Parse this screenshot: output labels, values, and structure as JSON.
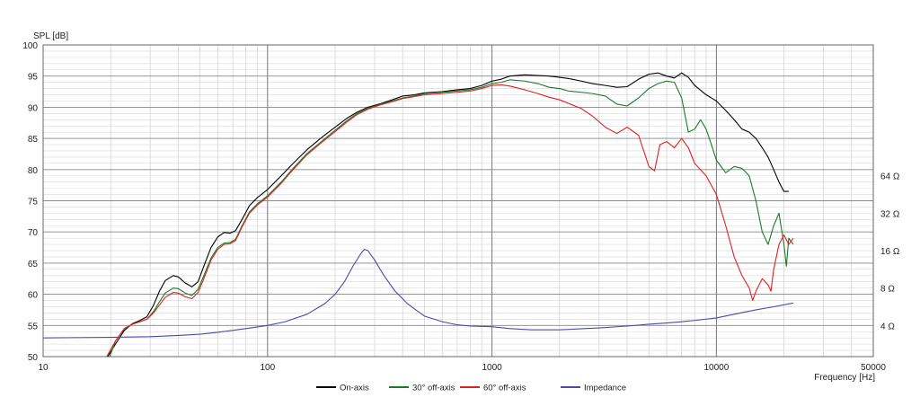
{
  "chart_data": {
    "type": "line",
    "ylabel": "SPL [dB]",
    "xlabel": "Frequency [Hz]",
    "x_scale": "log",
    "xlim": [
      10,
      50000
    ],
    "ylim": [
      50,
      100
    ],
    "grid": true,
    "legend_position": "bottom",
    "x_ticks": [
      {
        "value": 10,
        "label": "10"
      },
      {
        "value": 100,
        "label": "100"
      },
      {
        "value": 1000,
        "label": "1000"
      },
      {
        "value": 10000,
        "label": "10000"
      },
      {
        "value": 50000,
        "label": "50000"
      }
    ],
    "y_ticks": [
      {
        "value": 100,
        "label": "100"
      },
      {
        "value": 95,
        "label": "95"
      },
      {
        "value": 90,
        "label": "90"
      },
      {
        "value": 85,
        "label": "85"
      },
      {
        "value": 80,
        "label": "80"
      },
      {
        "value": 75,
        "label": "75"
      },
      {
        "value": 70,
        "label": "70"
      },
      {
        "value": 65,
        "label": "65"
      },
      {
        "value": 60,
        "label": "60"
      },
      {
        "value": 55,
        "label": "55"
      },
      {
        "value": 50,
        "label": "50"
      }
    ],
    "right_axis_ticks": [
      {
        "value": 79,
        "label": "64 Ω"
      },
      {
        "value": 73,
        "label": "32 Ω"
      },
      {
        "value": 67,
        "label": "16 Ω"
      },
      {
        "value": 61,
        "label": "8 Ω"
      },
      {
        "value": 55,
        "label": "4 Ω"
      }
    ],
    "series": [
      {
        "name": "On-axis",
        "color": "#000000",
        "points": [
          [
            19.4,
            50
          ],
          [
            21,
            52
          ],
          [
            23,
            54.2
          ],
          [
            25,
            55.3
          ],
          [
            27,
            55.8
          ],
          [
            29,
            56.4
          ],
          [
            31,
            58.2
          ],
          [
            33,
            60.5
          ],
          [
            35,
            62.2
          ],
          [
            38,
            63
          ],
          [
            40,
            62.8
          ],
          [
            43,
            61.8
          ],
          [
            46,
            61.2
          ],
          [
            49,
            62
          ],
          [
            52,
            64.5
          ],
          [
            56,
            67.5
          ],
          [
            60,
            69.2
          ],
          [
            64,
            69.9
          ],
          [
            68,
            69.8
          ],
          [
            72,
            70.2
          ],
          [
            77,
            72
          ],
          [
            83,
            74.2
          ],
          [
            90,
            75.5
          ],
          [
            100,
            76.8
          ],
          [
            115,
            79
          ],
          [
            130,
            81
          ],
          [
            150,
            83.2
          ],
          [
            175,
            85.2
          ],
          [
            200,
            86.8
          ],
          [
            225,
            88.2
          ],
          [
            250,
            89.2
          ],
          [
            280,
            90
          ],
          [
            320,
            90.6
          ],
          [
            360,
            91.2
          ],
          [
            400,
            91.8
          ],
          [
            450,
            92
          ],
          [
            500,
            92.3
          ],
          [
            600,
            92.5
          ],
          [
            700,
            92.8
          ],
          [
            800,
            93
          ],
          [
            900,
            93.5
          ],
          [
            1000,
            94.2
          ],
          [
            1100,
            94.5
          ],
          [
            1200,
            95
          ],
          [
            1400,
            95.2
          ],
          [
            1600,
            95.1
          ],
          [
            1800,
            95
          ],
          [
            2000,
            94.8
          ],
          [
            2200,
            94.6
          ],
          [
            2500,
            94.2
          ],
          [
            2800,
            93.8
          ],
          [
            3200,
            93.5
          ],
          [
            3600,
            93.2
          ],
          [
            4000,
            93.3
          ],
          [
            4500,
            94.5
          ],
          [
            5000,
            95.3
          ],
          [
            5500,
            95.5
          ],
          [
            6000,
            95
          ],
          [
            6500,
            94.7
          ],
          [
            7000,
            95.5
          ],
          [
            7500,
            94.8
          ],
          [
            8000,
            93.5
          ],
          [
            9000,
            92
          ],
          [
            10000,
            91
          ],
          [
            11000,
            89.5
          ],
          [
            12000,
            88
          ],
          [
            13000,
            86.5
          ],
          [
            14000,
            86
          ],
          [
            15000,
            85
          ],
          [
            16000,
            83.5
          ],
          [
            17000,
            82
          ],
          [
            18000,
            80
          ],
          [
            19000,
            78
          ],
          [
            20000,
            76.5
          ],
          [
            21000,
            76.5
          ]
        ]
      },
      {
        "name": "30° off-axis",
        "color": "#1a7a2a",
        "points": [
          [
            19.8,
            50
          ],
          [
            21,
            52.5
          ],
          [
            23,
            54.5
          ],
          [
            25,
            55.2
          ],
          [
            27,
            55.6
          ],
          [
            29,
            56
          ],
          [
            31,
            57.2
          ],
          [
            33,
            58.8
          ],
          [
            35,
            60.2
          ],
          [
            38,
            61
          ],
          [
            40,
            60.9
          ],
          [
            43,
            60.2
          ],
          [
            46,
            59.8
          ],
          [
            49,
            60.8
          ],
          [
            52,
            63
          ],
          [
            56,
            65.8
          ],
          [
            60,
            67.5
          ],
          [
            64,
            68.2
          ],
          [
            68,
            68.3
          ],
          [
            72,
            68.8
          ],
          [
            77,
            71
          ],
          [
            83,
            73.2
          ],
          [
            90,
            74.5
          ],
          [
            100,
            75.8
          ],
          [
            115,
            78
          ],
          [
            130,
            80.2
          ],
          [
            150,
            82.6
          ],
          [
            175,
            84.6
          ],
          [
            200,
            86.3
          ],
          [
            225,
            87.8
          ],
          [
            250,
            89
          ],
          [
            280,
            89.8
          ],
          [
            320,
            90.5
          ],
          [
            360,
            91
          ],
          [
            400,
            91.5
          ],
          [
            450,
            91.8
          ],
          [
            500,
            92.2
          ],
          [
            600,
            92.4
          ],
          [
            700,
            92.6
          ],
          [
            800,
            92.8
          ],
          [
            900,
            93.2
          ],
          [
            1000,
            93.8
          ],
          [
            1100,
            94
          ],
          [
            1200,
            94.4
          ],
          [
            1400,
            94.2
          ],
          [
            1600,
            93.8
          ],
          [
            1800,
            93.2
          ],
          [
            2000,
            93
          ],
          [
            2200,
            92.6
          ],
          [
            2500,
            92.4
          ],
          [
            2800,
            92.2
          ],
          [
            3200,
            91.8
          ],
          [
            3600,
            90.5
          ],
          [
            4000,
            90.2
          ],
          [
            4500,
            91.5
          ],
          [
            5000,
            93
          ],
          [
            5500,
            93.8
          ],
          [
            6000,
            94.2
          ],
          [
            6500,
            94
          ],
          [
            7000,
            91.5
          ],
          [
            7500,
            86
          ],
          [
            8000,
            86.5
          ],
          [
            8500,
            88
          ],
          [
            9000,
            86.5
          ],
          [
            9500,
            84
          ],
          [
            10000,
            81.5
          ],
          [
            11000,
            79.5
          ],
          [
            12000,
            80.5
          ],
          [
            13000,
            80.2
          ],
          [
            14000,
            79
          ],
          [
            15000,
            75
          ],
          [
            16000,
            70
          ],
          [
            17000,
            68
          ],
          [
            18000,
            71
          ],
          [
            19000,
            73
          ],
          [
            20000,
            68
          ],
          [
            20500,
            64.5
          ],
          [
            21000,
            69
          ],
          [
            22000,
            68
          ]
        ]
      },
      {
        "name": "60° off-axis",
        "color": "#e02020",
        "points": [
          [
            19.2,
            50
          ],
          [
            21,
            52.5
          ],
          [
            23,
            54.5
          ],
          [
            25,
            55.2
          ],
          [
            27,
            55.6
          ],
          [
            29,
            56
          ],
          [
            31,
            57
          ],
          [
            33,
            58.3
          ],
          [
            35,
            59.5
          ],
          [
            38,
            60.3
          ],
          [
            40,
            60.2
          ],
          [
            43,
            59.6
          ],
          [
            46,
            59.3
          ],
          [
            49,
            60.3
          ],
          [
            52,
            62.5
          ],
          [
            56,
            65.5
          ],
          [
            60,
            67.2
          ],
          [
            64,
            68
          ],
          [
            68,
            68.1
          ],
          [
            72,
            68.6
          ],
          [
            77,
            70.8
          ],
          [
            83,
            73
          ],
          [
            90,
            74.3
          ],
          [
            100,
            75.6
          ],
          [
            115,
            77.8
          ],
          [
            130,
            80
          ],
          [
            150,
            82.4
          ],
          [
            175,
            84.4
          ],
          [
            200,
            86.1
          ],
          [
            225,
            87.6
          ],
          [
            250,
            88.8
          ],
          [
            280,
            89.7
          ],
          [
            320,
            90.4
          ],
          [
            360,
            90.9
          ],
          [
            400,
            91.4
          ],
          [
            450,
            91.7
          ],
          [
            500,
            92
          ],
          [
            600,
            92.2
          ],
          [
            700,
            92.4
          ],
          [
            800,
            92.6
          ],
          [
            900,
            93
          ],
          [
            1000,
            93.5
          ],
          [
            1100,
            93.6
          ],
          [
            1200,
            93.4
          ],
          [
            1400,
            92.8
          ],
          [
            1600,
            92.2
          ],
          [
            1800,
            91.6
          ],
          [
            2000,
            91.2
          ],
          [
            2200,
            90.6
          ],
          [
            2500,
            89.8
          ],
          [
            2800,
            88.6
          ],
          [
            3200,
            86.8
          ],
          [
            3600,
            85.8
          ],
          [
            4000,
            86.8
          ],
          [
            4500,
            85.5
          ],
          [
            5000,
            80.5
          ],
          [
            5300,
            79.8
          ],
          [
            5600,
            84
          ],
          [
            6000,
            84.5
          ],
          [
            6500,
            83.5
          ],
          [
            7000,
            85
          ],
          [
            7500,
            83.5
          ],
          [
            8000,
            81
          ],
          [
            9000,
            79
          ],
          [
            10000,
            76
          ],
          [
            11000,
            71
          ],
          [
            12000,
            66
          ],
          [
            13000,
            63
          ],
          [
            14000,
            61
          ],
          [
            14500,
            59
          ],
          [
            15000,
            60.5
          ],
          [
            16000,
            62.5
          ],
          [
            17000,
            61.5
          ],
          [
            17500,
            60.5
          ],
          [
            18000,
            64
          ],
          [
            19000,
            68
          ],
          [
            20000,
            69.5
          ],
          [
            21000,
            68
          ],
          [
            22000,
            69
          ]
        ]
      },
      {
        "name": "Impedance",
        "color": "#4a4aaa",
        "points": [
          [
            10,
            53
          ],
          [
            20,
            53.1
          ],
          [
            30,
            53.2
          ],
          [
            40,
            53.4
          ],
          [
            50,
            53.6
          ],
          [
            60,
            53.9
          ],
          [
            70,
            54.2
          ],
          [
            80,
            54.5
          ],
          [
            100,
            55
          ],
          [
            120,
            55.6
          ],
          [
            150,
            56.8
          ],
          [
            180,
            58.5
          ],
          [
            200,
            60
          ],
          [
            220,
            62
          ],
          [
            240,
            64.5
          ],
          [
            260,
            66.5
          ],
          [
            270,
            67.2
          ],
          [
            280,
            67
          ],
          [
            300,
            65.5
          ],
          [
            330,
            63
          ],
          [
            370,
            60.5
          ],
          [
            420,
            58.5
          ],
          [
            500,
            56.5
          ],
          [
            600,
            55.6
          ],
          [
            700,
            55.1
          ],
          [
            800,
            54.9
          ],
          [
            1000,
            54.8
          ],
          [
            1200,
            54.5
          ],
          [
            1500,
            54.3
          ],
          [
            2000,
            54.3
          ],
          [
            3000,
            54.6
          ],
          [
            4000,
            54.9
          ],
          [
            5000,
            55.2
          ],
          [
            6000,
            55.4
          ],
          [
            7000,
            55.6
          ],
          [
            8000,
            55.8
          ],
          [
            10000,
            56.2
          ],
          [
            12000,
            56.8
          ],
          [
            15000,
            57.5
          ],
          [
            18000,
            58
          ],
          [
            22000,
            58.6
          ]
        ]
      }
    ]
  }
}
